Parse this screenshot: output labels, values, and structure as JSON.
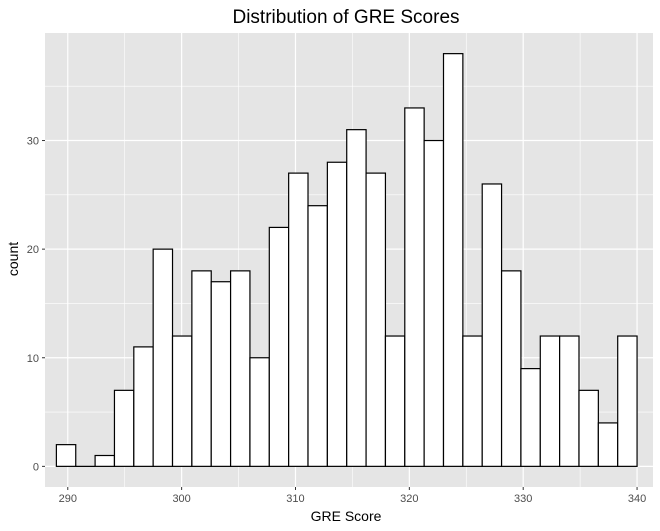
{
  "chart_data": {
    "type": "bar",
    "title": "Distribution of GRE Scores",
    "xlabel": "GRE Score",
    "ylabel": "count",
    "xlim": [
      288.0,
      341.4
    ],
    "ylim": [
      -1.9,
      39.9
    ],
    "x_ticks": [
      290,
      300,
      310,
      320,
      330,
      340
    ],
    "y_ticks": [
      0,
      10,
      20,
      30
    ],
    "bin_width": 1.7,
    "bins": [
      {
        "start": 289.0,
        "end": 290.7,
        "count": 2
      },
      {
        "start": 290.7,
        "end": 292.4,
        "count": 0
      },
      {
        "start": 292.4,
        "end": 294.1,
        "count": 1
      },
      {
        "start": 294.1,
        "end": 295.8,
        "count": 7
      },
      {
        "start": 295.8,
        "end": 297.5,
        "count": 11
      },
      {
        "start": 297.5,
        "end": 299.2,
        "count": 20
      },
      {
        "start": 299.2,
        "end": 300.9,
        "count": 12
      },
      {
        "start": 300.9,
        "end": 302.6,
        "count": 18
      },
      {
        "start": 302.6,
        "end": 304.3,
        "count": 17
      },
      {
        "start": 304.3,
        "end": 306.0,
        "count": 18
      },
      {
        "start": 306.0,
        "end": 307.7,
        "count": 10
      },
      {
        "start": 307.7,
        "end": 309.4,
        "count": 22
      },
      {
        "start": 309.4,
        "end": 311.1,
        "count": 27
      },
      {
        "start": 311.1,
        "end": 312.8,
        "count": 24
      },
      {
        "start": 312.8,
        "end": 314.5,
        "count": 28
      },
      {
        "start": 314.5,
        "end": 316.2,
        "count": 31
      },
      {
        "start": 316.2,
        "end": 317.9,
        "count": 27
      },
      {
        "start": 317.9,
        "end": 319.6,
        "count": 12
      },
      {
        "start": 319.6,
        "end": 321.3,
        "count": 33
      },
      {
        "start": 321.3,
        "end": 323.0,
        "count": 30
      },
      {
        "start": 323.0,
        "end": 324.7,
        "count": 38
      },
      {
        "start": 324.7,
        "end": 326.4,
        "count": 12
      },
      {
        "start": 326.4,
        "end": 328.1,
        "count": 26
      },
      {
        "start": 328.1,
        "end": 329.8,
        "count": 18
      },
      {
        "start": 329.8,
        "end": 331.5,
        "count": 9
      },
      {
        "start": 331.5,
        "end": 333.2,
        "count": 12
      },
      {
        "start": 333.2,
        "end": 334.9,
        "count": 12
      },
      {
        "start": 334.9,
        "end": 336.6,
        "count": 7
      },
      {
        "start": 336.6,
        "end": 338.3,
        "count": 4
      },
      {
        "start": 338.3,
        "end": 340.0,
        "count": 12
      }
    ],
    "grid": true,
    "colors": {
      "panel_background": "#e5e5e5",
      "grid_line": "#ffffff",
      "bar_fill": "#ffffff",
      "bar_outline": "#000000",
      "tick_label": "#4d4d4d"
    }
  }
}
